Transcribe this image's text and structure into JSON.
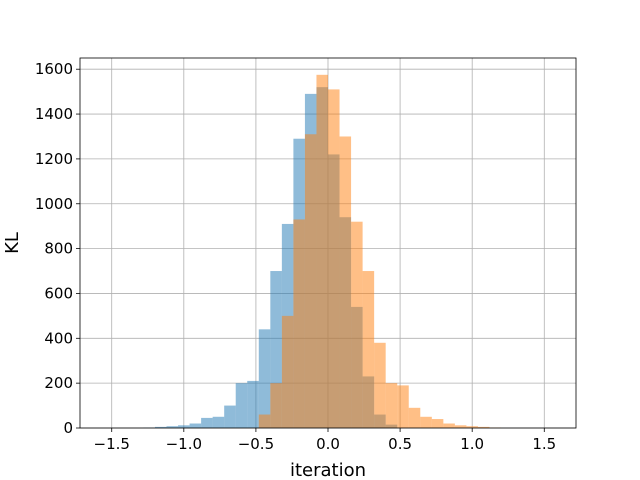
{
  "chart_data": {
    "type": "bar",
    "title": "",
    "xlabel": "iteration",
    "ylabel": "KL",
    "xlim": [
      -1.72,
      1.72
    ],
    "ylim": [
      0,
      1650
    ],
    "xticks": [
      -1.5,
      -1.0,
      -0.5,
      0.0,
      0.5,
      1.0,
      1.5
    ],
    "xtick_labels": [
      "−1.5",
      "−1.0",
      "−0.5",
      "0.0",
      "0.5",
      "1.0",
      "1.5"
    ],
    "yticks": [
      0,
      200,
      400,
      600,
      800,
      1000,
      1200,
      1400,
      1600
    ],
    "ytick_labels": [
      "0",
      "200",
      "400",
      "600",
      "800",
      "1000",
      "1200",
      "1400",
      "1600"
    ],
    "grid": true,
    "bin_width": 0.08,
    "series": [
      {
        "color": "#1f77b4",
        "alpha": 0.5,
        "bin_left_edges": [
          -1.28,
          -1.2,
          -1.12,
          -1.04,
          -0.96,
          -0.88,
          -0.8,
          -0.72,
          -0.64,
          -0.56,
          -0.48,
          -0.4,
          -0.32,
          -0.24,
          -0.16,
          -0.08,
          0.0,
          0.08,
          0.16,
          0.24,
          0.32,
          0.4
        ],
        "values": [
          2,
          5,
          8,
          12,
          20,
          45,
          50,
          100,
          200,
          210,
          440,
          700,
          910,
          1290,
          1490,
          1520,
          1220,
          940,
          540,
          230,
          60,
          15
        ]
      },
      {
        "color": "#ff7f0e",
        "alpha": 0.5,
        "bin_left_edges": [
          -0.48,
          -0.4,
          -0.32,
          -0.24,
          -0.16,
          -0.08,
          0.0,
          0.08,
          0.16,
          0.24,
          0.32,
          0.4,
          0.48,
          0.56,
          0.64,
          0.72,
          0.8,
          0.88,
          0.96,
          1.04,
          1.12
        ],
        "values": [
          60,
          200,
          500,
          930,
          1310,
          1575,
          1510,
          1300,
          920,
          700,
          380,
          200,
          190,
          90,
          50,
          40,
          20,
          12,
          8,
          5,
          2
        ]
      }
    ]
  }
}
